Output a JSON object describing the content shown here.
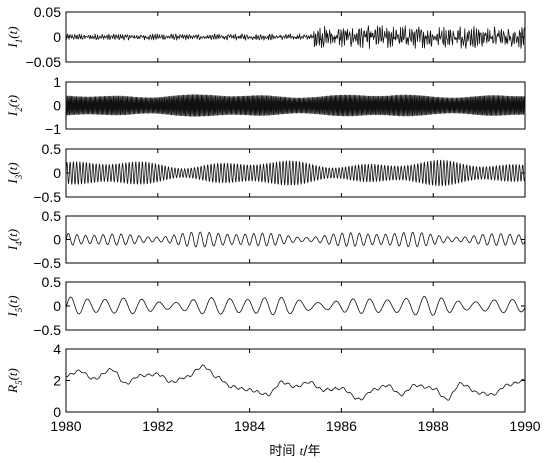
{
  "chart_data": [
    {
      "type": "line",
      "ylabel_main": "I",
      "ylabel_sub": "1",
      "ylabel_arg": "(t)",
      "ylim": [
        -0.05,
        0.05
      ],
      "yticks": [
        -0.05,
        0,
        0.05
      ],
      "ytick_labels": [
        "−0.05",
        "0",
        "0.05"
      ],
      "xlim": [
        1980,
        1990
      ],
      "series": [
        {
          "kind": "noise",
          "amp_before": 0.005,
          "amp_after": 0.018,
          "change_year": 1985.4,
          "cycles_per_year": 70
        }
      ]
    },
    {
      "type": "line",
      "ylabel_main": "I",
      "ylabel_sub": "2",
      "ylabel_arg": "(t)",
      "ylim": [
        -1,
        1
      ],
      "yticks": [
        -1,
        0,
        1
      ],
      "ytick_labels": [
        "−1",
        "0",
        "1"
      ],
      "xlim": [
        1980,
        1990
      ],
      "series": [
        {
          "kind": "osc",
          "amp": 0.4,
          "cycles_per_year": 36,
          "mod_depth": 0.2
        }
      ]
    },
    {
      "type": "line",
      "ylabel_main": "I",
      "ylabel_sub": "3",
      "ylabel_arg": "(t)",
      "ylim": [
        -0.5,
        0.5
      ],
      "yticks": [
        -0.5,
        0,
        0.5
      ],
      "ytick_labels": [
        "−0.5",
        "0",
        "0.5"
      ],
      "xlim": [
        1980,
        1990
      ],
      "series": [
        {
          "kind": "osc",
          "amp": 0.18,
          "cycles_per_year": 14,
          "mod_depth": 0.5
        }
      ]
    },
    {
      "type": "line",
      "ylabel_main": "I",
      "ylabel_sub": "4",
      "ylabel_arg": "(t)",
      "ylim": [
        -0.5,
        0.5
      ],
      "yticks": [
        -0.5,
        0,
        0.5
      ],
      "ytick_labels": [
        "−0.5",
        "0",
        "0.5"
      ],
      "xlim": [
        1980,
        1990
      ],
      "series": [
        {
          "kind": "osc",
          "amp": 0.11,
          "cycles_per_year": 5.2,
          "mod_depth": 0.6
        }
      ]
    },
    {
      "type": "line",
      "ylabel_main": "I",
      "ylabel_sub": "5",
      "ylabel_arg": "(t)",
      "ylim": [
        -0.5,
        0.5
      ],
      "yticks": [
        -0.5,
        0,
        0.5
      ],
      "ytick_labels": [
        "−0.5",
        "0",
        "0.5"
      ],
      "xlim": [
        1980,
        1990
      ],
      "series": [
        {
          "kind": "osc",
          "amp": 0.14,
          "cycles_per_year": 2.6,
          "mod_depth": 0.5
        }
      ]
    },
    {
      "type": "line",
      "ylabel_main": "R",
      "ylabel_sub": "5",
      "ylabel_arg": "(t)",
      "ylim": [
        0,
        4
      ],
      "yticks": [
        0,
        2,
        4
      ],
      "ytick_labels": [
        "0",
        "2",
        "4"
      ],
      "xlim": [
        1980,
        1990
      ],
      "series": [
        {
          "kind": "points",
          "x": [
            1980,
            1980.3,
            1980.6,
            1981.0,
            1981.3,
            1981.6,
            1982.0,
            1982.3,
            1982.6,
            1983.0,
            1983.3,
            1983.6,
            1984.0,
            1984.4,
            1984.7,
            1985.0,
            1985.3,
            1985.6,
            1986.0,
            1986.4,
            1986.7,
            1987.0,
            1987.3,
            1987.6,
            1988.0,
            1988.3,
            1988.6,
            1989.0,
            1989.3,
            1989.6,
            1990.0
          ],
          "y": [
            2.3,
            2.6,
            2.1,
            2.7,
            1.8,
            2.3,
            2.4,
            1.9,
            2.2,
            2.9,
            2.2,
            1.6,
            1.4,
            1.1,
            1.9,
            1.6,
            1.9,
            1.4,
            1.5,
            0.8,
            1.4,
            1.7,
            1.1,
            1.7,
            1.5,
            0.8,
            1.8,
            1.2,
            1.1,
            1.7,
            2.0
          ]
        }
      ]
    }
  ],
  "x_axis": {
    "ticks": [
      1980,
      1982,
      1984,
      1986,
      1988,
      1990
    ],
    "tick_labels": [
      "1980",
      "1982",
      "1984",
      "1986",
      "1988",
      "1990"
    ],
    "label_cn": "时间",
    "label_var": "t",
    "label_unit": "/年"
  }
}
